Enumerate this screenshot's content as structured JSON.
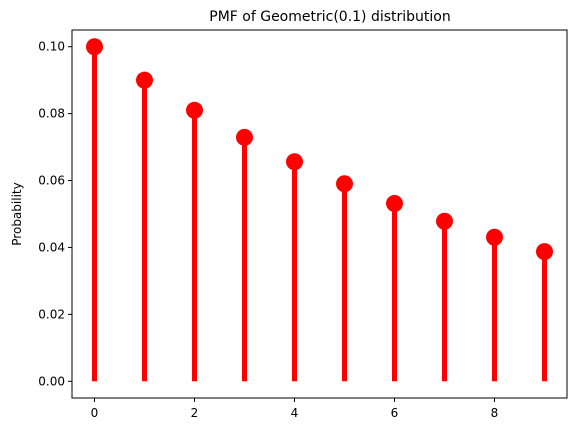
{
  "chart_data": {
    "type": "stem",
    "title": "PMF of Geometric(0.1) distribution",
    "xlabel": "",
    "ylabel": "Probability",
    "x": [
      0,
      1,
      2,
      3,
      4,
      5,
      6,
      7,
      8,
      9
    ],
    "values": [
      0.1,
      0.09,
      0.081,
      0.0729,
      0.06561,
      0.059049,
      0.0531441,
      0.04782969,
      0.043046721,
      0.0387420489
    ],
    "xlim": [
      -0.45,
      9.45
    ],
    "ylim": [
      -0.005,
      0.105
    ],
    "xticks": [
      0,
      2,
      4,
      6,
      8
    ],
    "xtick_labels": [
      "0",
      "2",
      "4",
      "6",
      "8"
    ],
    "yticks": [
      0.0,
      0.02,
      0.04,
      0.06,
      0.08,
      0.1
    ],
    "ytick_labels": [
      "0.00",
      "0.02",
      "0.04",
      "0.06",
      "0.08",
      "0.10"
    ],
    "grid": false,
    "color": "#ff0000"
  }
}
